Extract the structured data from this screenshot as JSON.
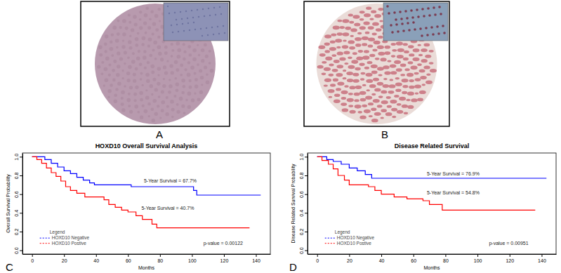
{
  "panel_labels": [
    "A",
    "B",
    "C",
    "D"
  ],
  "chart_data": [
    {
      "type": "line",
      "title": "HOXD10 Overall Survival Analysis",
      "x_label": "Months",
      "y_label": "Overall Survival Probability",
      "legend_title": "Legend",
      "legend": "bottom-left",
      "xlim": [
        -6,
        149
      ],
      "ylim": [
        -0.04,
        1.04
      ],
      "xticks": [
        0,
        20,
        40,
        60,
        80,
        100,
        120,
        140
      ],
      "yticks": [
        {
          "value": 0,
          "label": "0.0"
        },
        {
          "value": 0.2,
          "label": "0.2"
        },
        {
          "value": 0.4,
          "label": "0.4"
        },
        {
          "value": 0.6,
          "label": "0.6"
        },
        {
          "value": 0.8,
          "label": "0.8"
        },
        {
          "value": 1,
          "label": "1.0"
        }
      ],
      "annotations": [
        "5-Year Survival = 67.7%",
        "5-Year Survival = 40.7%",
        "p-value = 0.00122"
      ],
      "series": [
        {
          "name": "HOXD10 Negative",
          "color": "#0000ff",
          "line_style": "step",
          "x": [
            0,
            8,
            12,
            16,
            20,
            24,
            28,
            32,
            36,
            39,
            62,
            101,
            103,
            143
          ],
          "values": [
            1,
            0.97,
            0.93,
            0.89,
            0.85,
            0.82,
            0.78,
            0.75,
            0.72,
            0.7,
            0.68,
            0.64,
            0.59,
            0.59
          ]
        },
        {
          "name": "HOXD10 Postive",
          "color": "#ff0000",
          "line_style": "step",
          "x": [
            0,
            3,
            6,
            9,
            12,
            15,
            18,
            21,
            24,
            28,
            33,
            45,
            48,
            52,
            56,
            60,
            65,
            69,
            75,
            78,
            136
          ],
          "values": [
            1,
            0.97,
            0.93,
            0.88,
            0.83,
            0.79,
            0.74,
            0.68,
            0.64,
            0.61,
            0.57,
            0.54,
            0.49,
            0.46,
            0.43,
            0.41,
            0.37,
            0.33,
            0.28,
            0.24,
            0.24
          ]
        }
      ]
    },
    {
      "type": "line",
      "title": "Disease Related Survival",
      "x_label": "Months",
      "y_label": "Disease Related Survival Probability",
      "legend_title": "Legend",
      "legend": "bottom-left",
      "xlim": [
        -6,
        149
      ],
      "ylim": [
        -0.04,
        1.04
      ],
      "xticks": [
        0,
        20,
        40,
        60,
        80,
        100,
        120,
        140
      ],
      "yticks": [
        {
          "value": 0,
          "label": "0.0"
        },
        {
          "value": 0.2,
          "label": "0.2"
        },
        {
          "value": 0.4,
          "label": "0.4"
        },
        {
          "value": 0.6,
          "label": "0.6"
        },
        {
          "value": 0.8,
          "label": "0.8"
        },
        {
          "value": 1,
          "label": "1.0"
        }
      ],
      "annotations": [
        "5-Year Survival = 76.9%",
        "5-Year Survival = 54.8%",
        "p-value = 0.00951"
      ],
      "series": [
        {
          "name": "HOXD10 Negative",
          "color": "#0000ff",
          "line_style": "step",
          "x": [
            0,
            6,
            10,
            15,
            20,
            25,
            30,
            34,
            143
          ],
          "values": [
            1,
            0.97,
            0.95,
            0.92,
            0.88,
            0.85,
            0.81,
            0.77,
            0.77
          ]
        },
        {
          "name": "HOXD10 Postive",
          "color": "#ff0000",
          "line_style": "step",
          "x": [
            0,
            3,
            7,
            10,
            13,
            17,
            20,
            32,
            36,
            40,
            48,
            56,
            66,
            70,
            78,
            136
          ],
          "values": [
            1,
            0.96,
            0.92,
            0.87,
            0.8,
            0.75,
            0.7,
            0.68,
            0.64,
            0.6,
            0.57,
            0.55,
            0.53,
            0.49,
            0.43,
            0.43
          ]
        }
      ]
    }
  ]
}
